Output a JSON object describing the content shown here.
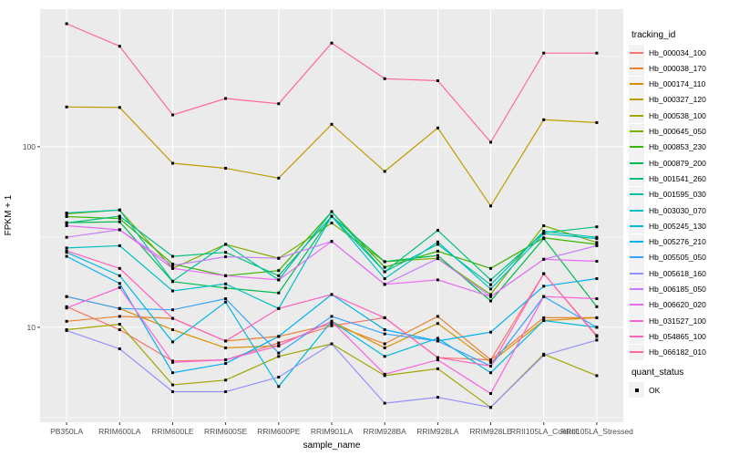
{
  "figure": {
    "background": "#ffffff",
    "panel_background": "#ebebeb",
    "gridline_color": "#ffffff",
    "tick_color": "#333333",
    "tick_label_color": "#4d4d4d",
    "point_color": "#000000"
  },
  "legend": {
    "color_title": "tracking_id",
    "shape_title": "quant_status",
    "shape_items": [
      {
        "label": "OK",
        "shape": "square",
        "color": "#000000"
      }
    ],
    "key_fill": "#f2f2f2",
    "position": "right"
  },
  "chart_data": {
    "type": "line",
    "title": "",
    "xlabel": "sample_name",
    "ylabel": "FPKM + 1",
    "y_scale": "log10",
    "ylim": [
      2.98,
      578
    ],
    "y_ticks": [
      10,
      100
    ],
    "y_minor_ticks": [
      3.162,
      31.62,
      316.2
    ],
    "grid": true,
    "legend_position": "right",
    "point_shape": "square",
    "categories": [
      "PB350LA",
      "RRIM600LA",
      "RRIM600LE",
      "RRIM600SE",
      "RRIM600PE",
      "RRIM901LA",
      "RRIM928BA",
      "RRIM928LA",
      "RRIM928LE",
      "RRII105LA_Control",
      "RRII105LA_Stressed"
    ],
    "series": [
      {
        "name": "Hb_000034_100",
        "color": "#F8766D",
        "values": [
          13.0,
          9.7,
          6.5,
          6.6,
          8.2,
          10.2,
          11.3,
          6.8,
          6.6,
          19.8,
          9.0
        ]
      },
      {
        "name": "Hb_000038_170",
        "color": "#EA8331",
        "values": [
          10.8,
          11.5,
          11.2,
          8.4,
          8.9,
          10.4,
          8.1,
          11.5,
          6.6,
          11.3,
          11.3
        ]
      },
      {
        "name": "Hb_000174_110",
        "color": "#D89000",
        "values": [
          14.8,
          12.7,
          9.7,
          7.7,
          7.9,
          10.8,
          7.7,
          10.5,
          6.4,
          10.9,
          11.3
        ]
      },
      {
        "name": "Hb_000327_120",
        "color": "#C09B00",
        "values": [
          166,
          165,
          81,
          76,
          67,
          133,
          73,
          127,
          47,
          141,
          136
        ]
      },
      {
        "name": "Hb_000538_100",
        "color": "#A3A500",
        "values": [
          9.7,
          10.4,
          4.8,
          5.1,
          6.9,
          8.1,
          5.4,
          5.9,
          3.6,
          7.1,
          5.4
        ]
      },
      {
        "name": "Hb_000645_050",
        "color": "#7CAE00",
        "values": [
          42.5,
          44.6,
          21.2,
          28.8,
          24.1,
          37.8,
          23.1,
          24.1,
          15.2,
          36.5,
          29.5
        ]
      },
      {
        "name": "Hb_000853_230",
        "color": "#39B600",
        "values": [
          41.0,
          40.0,
          22.4,
          19.3,
          20.6,
          43.7,
          21.5,
          26.4,
          21.2,
          31.3,
          28.8
        ]
      },
      {
        "name": "Hb_000879_200",
        "color": "#00BB4E",
        "values": [
          38.0,
          38.4,
          17.9,
          16.5,
          15.5,
          41.2,
          23.1,
          25.0,
          14.0,
          31.0,
          13.0
        ]
      },
      {
        "name": "Hb_001541_260",
        "color": "#00BF7D",
        "values": [
          37.8,
          41.2,
          24.7,
          26.0,
          19.3,
          41.2,
          20.3,
          34.4,
          18.3,
          33.4,
          36.0
        ]
      },
      {
        "name": "Hb_001595_030",
        "color": "#00C1A3",
        "values": [
          43.0,
          44.6,
          18.0,
          28.8,
          18.3,
          43.7,
          20.3,
          28.8,
          17.2,
          34.0,
          31.5
        ]
      },
      {
        "name": "Hb_003030_070",
        "color": "#00BFC4",
        "values": [
          27.5,
          28.3,
          15.9,
          17.4,
          12.7,
          41.2,
          18.6,
          29.7,
          16.3,
          33.0,
          31.0
        ]
      },
      {
        "name": "Hb_005245_130",
        "color": "#00BAE0",
        "values": [
          26.0,
          19.3,
          8.3,
          13.8,
          4.7,
          10.8,
          6.9,
          8.7,
          5.6,
          10.9,
          10.0
        ]
      },
      {
        "name": "Hb_005276_210",
        "color": "#00B0F6",
        "values": [
          24.7,
          17.5,
          5.6,
          6.3,
          8.9,
          15.2,
          9.7,
          8.4,
          9.4,
          16.9,
          18.6
        ]
      },
      {
        "name": "Hb_005505_050",
        "color": "#35A2FF",
        "values": [
          14.8,
          12.7,
          12.5,
          14.4,
          7.2,
          11.5,
          9.2,
          8.4,
          6.1,
          14.8,
          10.0
        ]
      },
      {
        "name": "Hb_005618_160",
        "color": "#9590FF",
        "values": [
          9.6,
          7.6,
          4.4,
          4.4,
          5.3,
          8.1,
          3.8,
          4.1,
          3.6,
          7.0,
          8.5
        ]
      },
      {
        "name": "Hb_006185_050",
        "color": "#C77CFF",
        "values": [
          31.5,
          34.7,
          22.0,
          24.6,
          24.1,
          29.9,
          17.3,
          24.0,
          14.8,
          23.8,
          28.3
        ]
      },
      {
        "name": "Hb_006620_020",
        "color": "#E76BF3",
        "values": [
          36.5,
          34.7,
          21.2,
          19.3,
          18.3,
          29.9,
          17.3,
          18.3,
          14.8,
          23.8,
          23.2
        ]
      },
      {
        "name": "Hb_031527_100",
        "color": "#FA62DB",
        "values": [
          12.8,
          16.6,
          6.4,
          6.6,
          7.9,
          10.8,
          5.5,
          6.6,
          4.3,
          14.8,
          14.4
        ]
      },
      {
        "name": "Hb_054865_100",
        "color": "#FF62BC",
        "values": [
          26.5,
          21.2,
          11.2,
          8.4,
          12.7,
          15.2,
          11.3,
          6.8,
          6.1,
          19.8,
          8.9
        ]
      },
      {
        "name": "Hb_066182_010",
        "color": "#FF6A98",
        "values": [
          480,
          360,
          150,
          185,
          173,
          375,
          238,
          232,
          106,
          330,
          330
        ]
      }
    ]
  }
}
